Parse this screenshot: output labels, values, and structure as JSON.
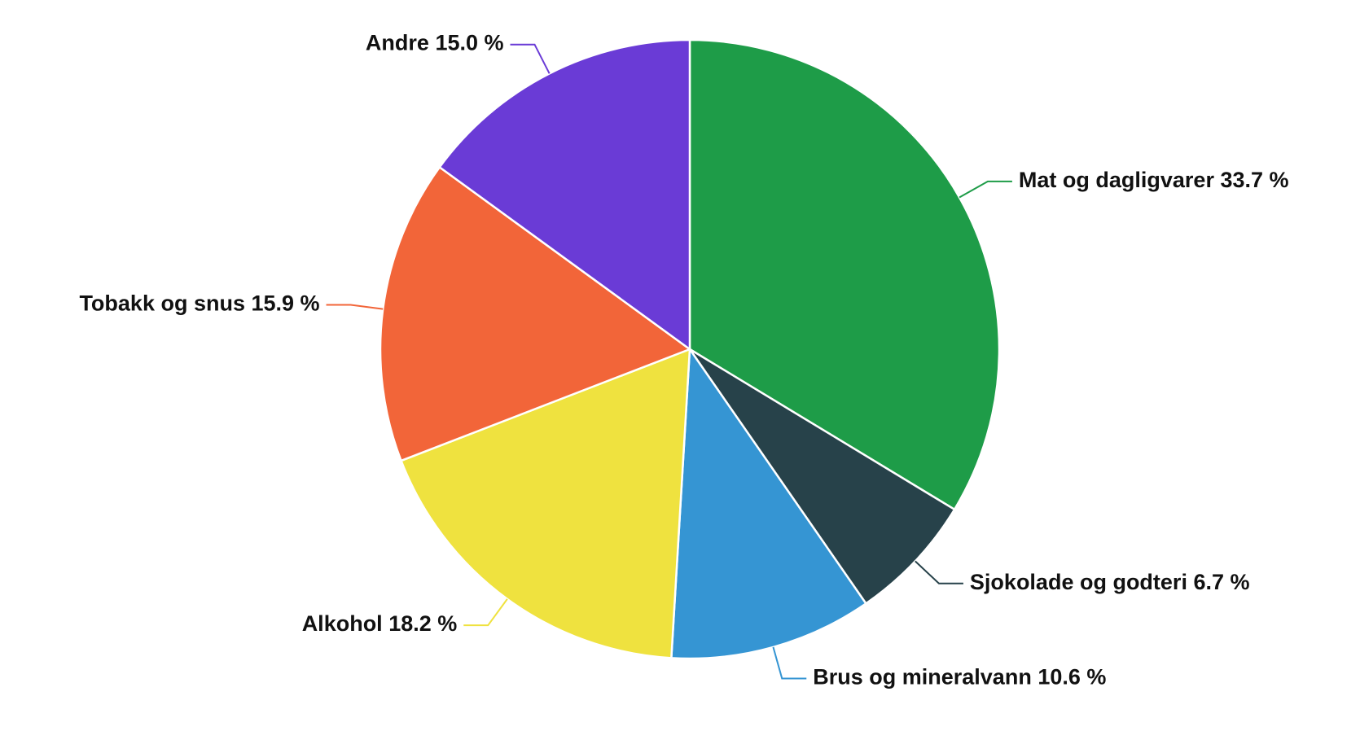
{
  "chart_data": {
    "type": "pie",
    "categories": [
      "Mat og dagligvarer",
      "Sjokolade og godteri",
      "Brus og mineralvann",
      "Alkohol",
      "Tobakk og snus",
      "Andre"
    ],
    "values": [
      33.7,
      6.7,
      10.6,
      18.2,
      15.9,
      15.0
    ],
    "value_labels": [
      "33.7 %",
      "6.7 %",
      "10.6 %",
      "18.2 %",
      "15.9 %",
      "15.0 %"
    ],
    "colors": [
      "#1e9c48",
      "#27424a",
      "#3595d3",
      "#efe23f",
      "#f26539",
      "#6a3bd6"
    ]
  }
}
